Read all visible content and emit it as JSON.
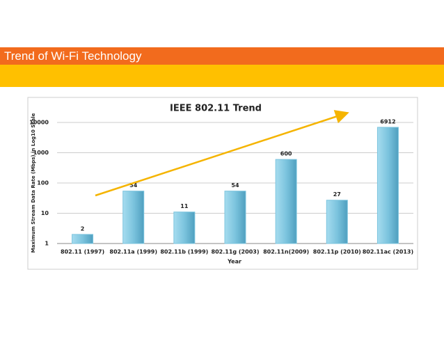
{
  "header": {
    "title": "Trend of Wi-Fi Technology"
  },
  "chart_data": {
    "type": "bar",
    "title": "IEEE 802.11 Trend",
    "x_label": "Year",
    "y_label": "Maximum Stream Data Rate (Mbps) in Log10 Scale",
    "categories": [
      "802.11 (1997)",
      "802.11a (1999)",
      "802.11b (1999)",
      "802.11g (2003)",
      "802.11n(2009)",
      "802.11p (2010)",
      "802.11ac (2013)"
    ],
    "values": [
      2,
      54,
      11,
      54,
      600,
      27,
      6912
    ],
    "color": "#7cc4de",
    "ylim": [
      1,
      10000
    ],
    "yticks": [
      1,
      10,
      100,
      1000,
      10000
    ],
    "log_scale": true,
    "grid": true
  }
}
